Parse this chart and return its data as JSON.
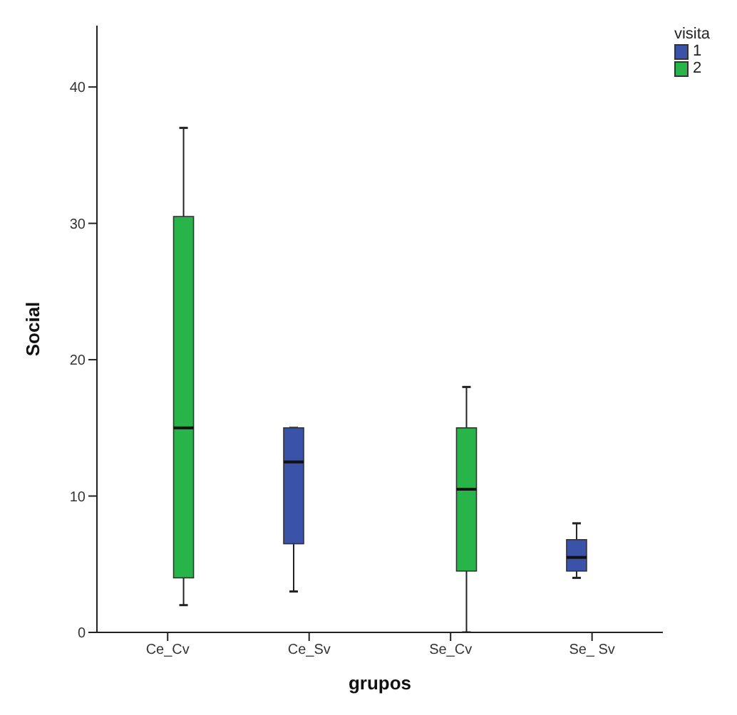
{
  "chart_data": {
    "type": "box",
    "xlabel": "grupos",
    "ylabel": "Social",
    "legend_title": "visita",
    "legend": "top right",
    "grid": false,
    "categories": [
      "Ce_Cv",
      "Ce_Sv",
      "Se_Cv",
      "Se_ Sv"
    ],
    "ylim": [
      0,
      44.5
    ],
    "yticks": [
      0,
      10,
      20,
      30,
      40
    ],
    "series": [
      {
        "name": "1",
        "color": "#3a52a8",
        "boxes": [
          null,
          {
            "low": 3,
            "q1": 6.5,
            "median": 12.5,
            "q3": 15,
            "high": 15
          },
          null,
          {
            "low": 4,
            "q1": 4.5,
            "median": 5.5,
            "q3": 6.8,
            "high": 8
          }
        ]
      },
      {
        "name": "2",
        "color": "#27b54a",
        "boxes": [
          {
            "low": 2,
            "q1": 4,
            "median": 15,
            "q3": 30.5,
            "high": 37
          },
          null,
          {
            "low": 0,
            "q1": 4.5,
            "median": 10.5,
            "q3": 15,
            "high": 18
          },
          null
        ]
      }
    ]
  }
}
